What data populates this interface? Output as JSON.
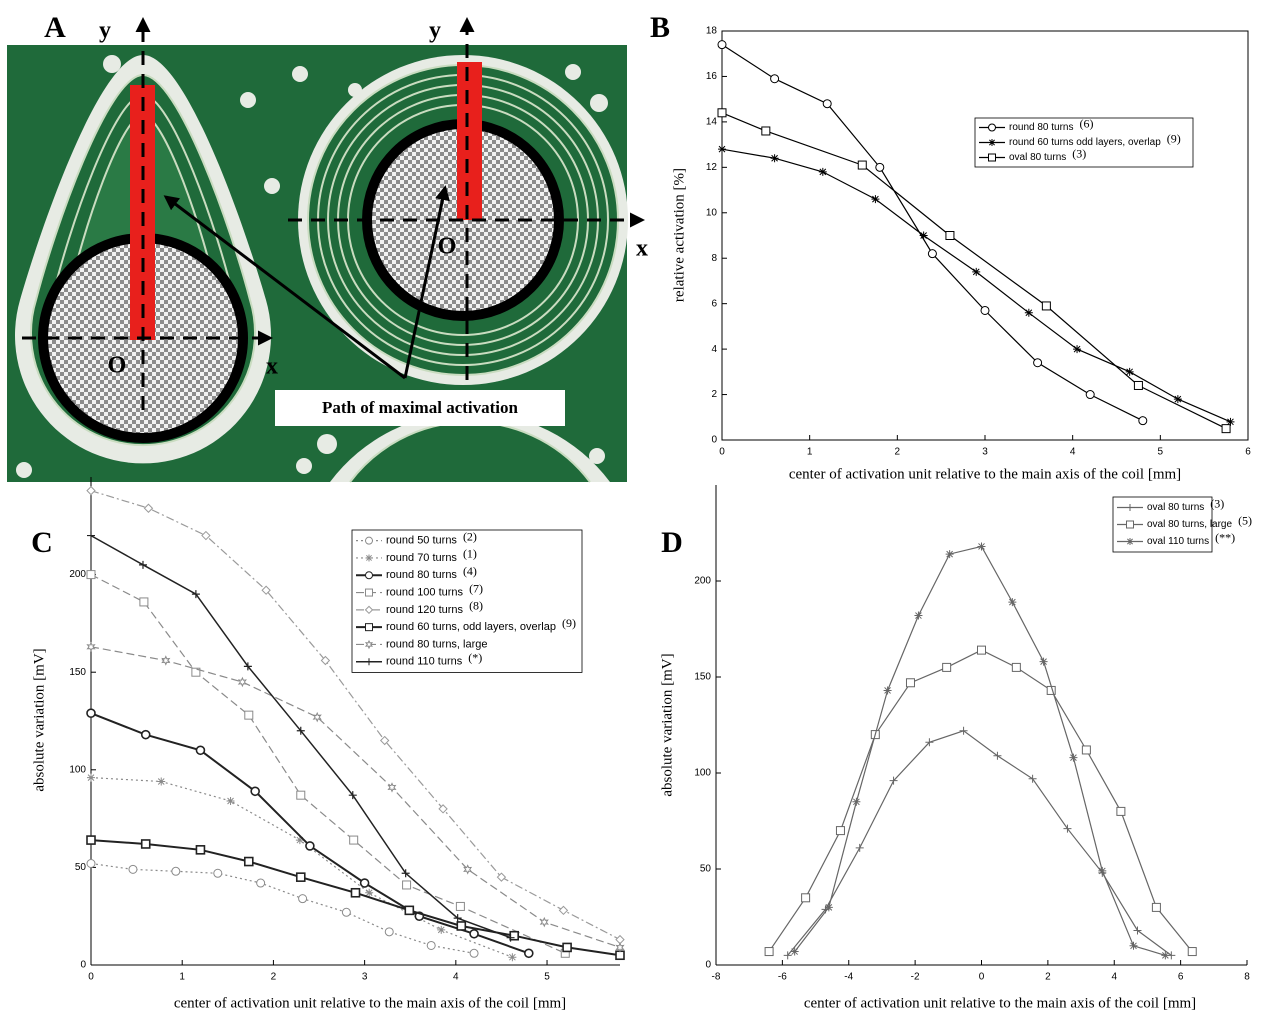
{
  "panel_a": {
    "label": "A",
    "axis_labels": [
      "y",
      "x",
      "y",
      "x"
    ],
    "origin_labels": [
      "O",
      "O"
    ],
    "annotation": "Path of maximal activation"
  },
  "chart_data": [
    {
      "type": "line",
      "label": "B",
      "xlabel": "center of activation unit relative to the main axis of the coil [mm]",
      "ylabel": "relative activation [%]",
      "xlim": [
        0,
        6
      ],
      "ylim": [
        0,
        18
      ],
      "xticks": [
        0,
        1,
        2,
        3,
        4,
        5,
        6
      ],
      "yticks": [
        0,
        2,
        4,
        6,
        8,
        10,
        12,
        14,
        16,
        18
      ],
      "box": true,
      "legend": "upper right",
      "series": [
        {
          "name": "round 80 turns",
          "note": "(6)",
          "color": "#000000",
          "marker": "circle",
          "dash": "solid",
          "line_width": 1.2,
          "x": [
            0,
            0.6,
            1.2,
            1.8,
            2.4,
            3,
            3.6,
            4.2,
            4.8
          ],
          "values": [
            17.4,
            15.9,
            14.8,
            12,
            8.2,
            5.7,
            3.4,
            2,
            0.85
          ]
        },
        {
          "name": "round 60 turns odd layers, overlap",
          "note": "(9)",
          "color": "#000000",
          "marker": "star",
          "dash": "solid",
          "line_width": 1.2,
          "x": [
            0,
            0.6,
            1.15,
            1.75,
            2.3,
            2.9,
            3.5,
            4.05,
            4.65,
            5.2,
            5.8
          ],
          "values": [
            12.8,
            12.4,
            11.8,
            10.6,
            9,
            7.4,
            5.6,
            4,
            3,
            1.8,
            0.8
          ]
        },
        {
          "name": "oval 80 turns",
          "note": "(3)",
          "color": "#000000",
          "marker": "square",
          "dash": "solid",
          "line_width": 1.2,
          "x": [
            0,
            0.5,
            1.6,
            2.6,
            3.7,
            4.75,
            5.75
          ],
          "values": [
            14.4,
            13.6,
            12.1,
            9,
            5.9,
            2.4,
            0.5
          ]
        }
      ]
    },
    {
      "type": "line",
      "label": "C",
      "xlabel": "center of activation unit relative to the main axis of the coil [mm]",
      "ylabel": "absolute variation [mV]",
      "xlim": [
        0,
        5.8
      ],
      "ylim": [
        0,
        250
      ],
      "xticks": [
        0,
        1,
        2,
        3,
        4,
        5
      ],
      "yticks": [
        0,
        50,
        100,
        150,
        200
      ],
      "box": false,
      "legend": "upper right",
      "series": [
        {
          "name": "round 50 turns",
          "note": "(2)",
          "color": "#8a8a8a",
          "marker": "circle",
          "dash": "dotted",
          "line_width": 1.2,
          "x": [
            0,
            0.46,
            0.93,
            1.39,
            1.86,
            2.32,
            2.8,
            3.27,
            3.73,
            4.2
          ],
          "values": [
            52,
            49,
            48,
            47,
            42,
            34,
            27,
            17,
            10,
            6
          ]
        },
        {
          "name": "round 70 turns",
          "note": "(1)",
          "color": "#8a8a8a",
          "marker": "star",
          "dash": "dotted",
          "line_width": 1.2,
          "x": [
            0,
            0.77,
            1.53,
            2.29,
            3.05,
            3.84,
            4.62
          ],
          "values": [
            96,
            94,
            84,
            64,
            37,
            18,
            4
          ]
        },
        {
          "name": "round 80 turns",
          "note": "(4)",
          "color": "#222222",
          "marker": "circle",
          "dash": "solid",
          "line_width": 2,
          "x": [
            0,
            0.6,
            1.2,
            1.8,
            2.4,
            3,
            3.6,
            4.2,
            4.8
          ],
          "values": [
            129,
            118,
            110,
            89,
            61,
            42,
            25,
            16,
            6
          ]
        },
        {
          "name": "round 100 turns",
          "note": "(7)",
          "color": "#8a8a8a",
          "marker": "square",
          "dash": "dashed",
          "line_width": 1.2,
          "x": [
            0,
            0.58,
            1.15,
            1.73,
            2.3,
            2.88,
            3.46,
            4.05,
            5.2
          ],
          "values": [
            200,
            186,
            150,
            128,
            87,
            64,
            41,
            30,
            6
          ]
        },
        {
          "name": "round 120 turns",
          "note": "(8)",
          "color": "#9a9a9a",
          "marker": "diamond",
          "dash": "dashdot",
          "line_width": 1.2,
          "x": [
            0,
            0.63,
            1.26,
            1.92,
            2.57,
            3.22,
            3.86,
            4.5,
            5.18,
            5.8
          ],
          "values": [
            243,
            234,
            220,
            192,
            156,
            115,
            80,
            45,
            28,
            13
          ]
        },
        {
          "name": "round 60 turns, odd layers, overlap",
          "note": "(9)",
          "color": "#222222",
          "marker": "square",
          "dash": "solid",
          "line_width": 2,
          "x": [
            0,
            0.6,
            1.2,
            1.73,
            2.3,
            2.9,
            3.49,
            4.06,
            4.64,
            5.22,
            5.8
          ],
          "values": [
            64,
            62,
            59,
            53,
            45,
            37,
            28,
            20,
            15,
            9,
            5
          ]
        },
        {
          "name": "round 80 turns, large",
          "note": null,
          "color": "#8a8a8a",
          "marker": "hexagram",
          "dash": "dashed",
          "line_width": 1.2,
          "x": [
            0,
            0.82,
            1.66,
            2.48,
            3.3,
            4.13,
            4.97,
            5.8
          ],
          "values": [
            163,
            156,
            145,
            127,
            91,
            49,
            22,
            9
          ]
        },
        {
          "name": "round 110 turns",
          "note": "(*)",
          "color": "#222222",
          "marker": "plus",
          "dash": "solid",
          "line_width": 1.5,
          "x": [
            0,
            0.57,
            1.15,
            1.72,
            2.3,
            2.87,
            3.45,
            4.02,
            4.6
          ],
          "values": [
            220,
            205,
            190,
            153,
            120,
            87,
            47,
            24,
            14
          ]
        }
      ]
    },
    {
      "type": "line",
      "label": "D",
      "xlabel": "center of activation unit relative to the main axis of the coil [mm]",
      "ylabel": "absolute variation [mV]",
      "xlim": [
        -8,
        8
      ],
      "ylim": [
        0,
        250
      ],
      "xticks": [
        -8,
        -6,
        -4,
        -2,
        0,
        2,
        4,
        6,
        8
      ],
      "yticks": [
        0,
        50,
        100,
        150,
        200
      ],
      "box": false,
      "legend": "upper right",
      "series": [
        {
          "name": "oval 80 turns",
          "note": "(3)",
          "color": "#666666",
          "marker": "plus",
          "dash": "solid",
          "line_width": 1.2,
          "x": [
            -5.84,
            -4.7,
            -3.67,
            -2.65,
            -1.57,
            -0.54,
            0.48,
            1.54,
            2.59,
            3.64,
            4.7,
            5.72
          ],
          "values": [
            5,
            29,
            61,
            96,
            116,
            122,
            109,
            97,
            71,
            48,
            18,
            5
          ]
        },
        {
          "name": "oval 80 turns, large",
          "note": "(5)",
          "color": "#666666",
          "marker": "square",
          "dash": "solid",
          "line_width": 1.2,
          "x": [
            -6.4,
            -5.3,
            -4.25,
            -3.2,
            -2.14,
            -1.05,
            0,
            1.05,
            2.1,
            3.16,
            4.2,
            5.27,
            6.35
          ],
          "values": [
            7,
            35,
            70,
            120,
            147,
            155,
            164,
            155,
            143,
            112,
            80,
            30,
            7
          ]
        },
        {
          "name": "oval 110 turns",
          "note": "(**)",
          "color": "#666666",
          "marker": "star",
          "dash": "solid",
          "line_width": 1.2,
          "x": [
            -5.63,
            -4.6,
            -3.77,
            -2.83,
            -1.9,
            -0.96,
            0,
            0.93,
            1.87,
            2.77,
            3.64,
            4.58,
            5.54
          ],
          "values": [
            7,
            30,
            85,
            143,
            182,
            214,
            218,
            189,
            158,
            108,
            49,
            10,
            5
          ]
        }
      ]
    }
  ]
}
